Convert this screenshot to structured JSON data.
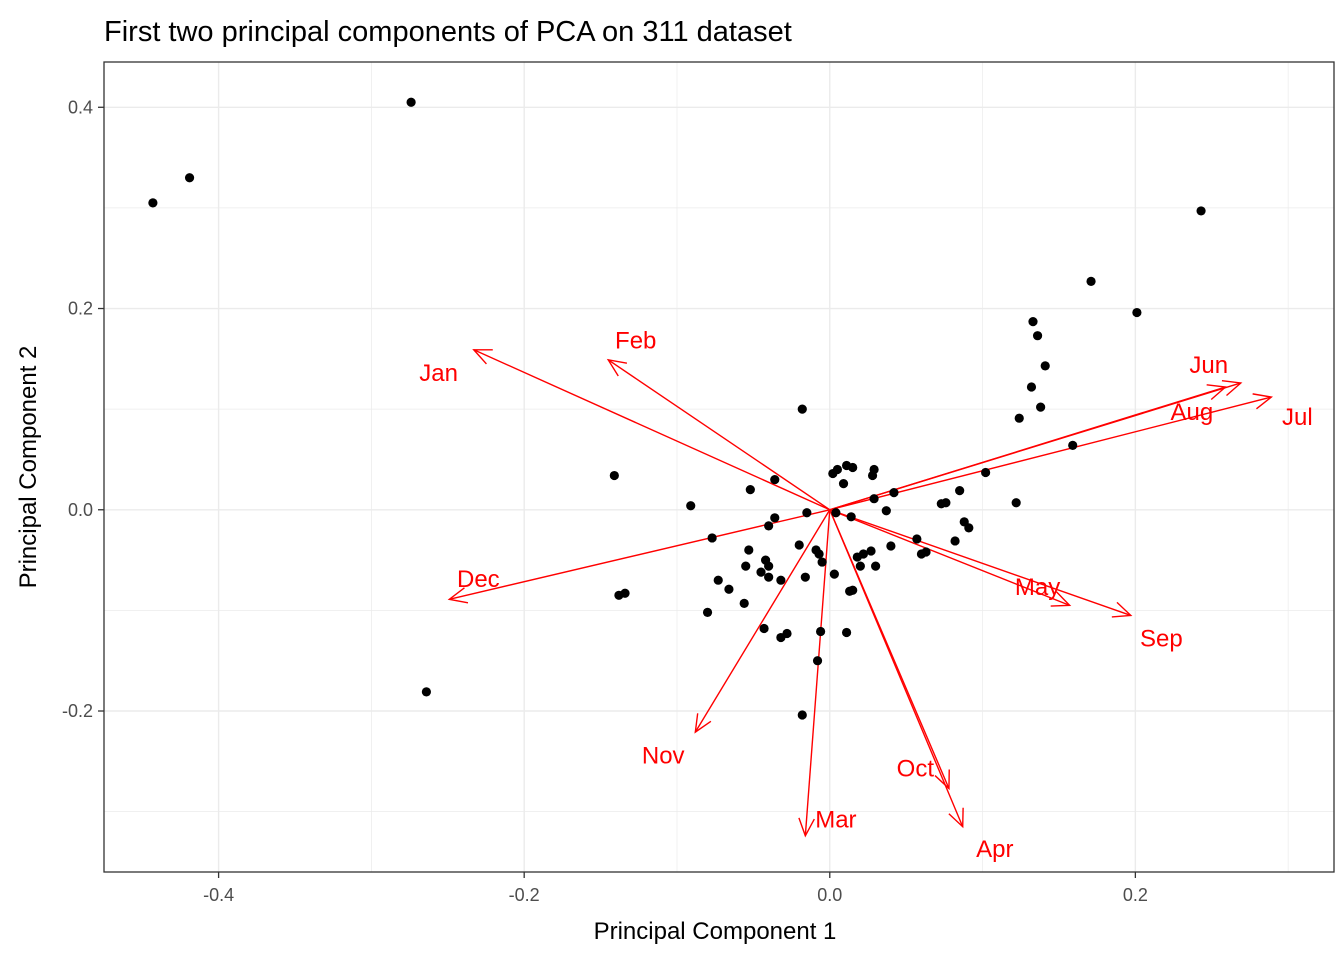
{
  "chart_data": {
    "type": "scatter",
    "title": "First two principal components of PCA on 311 dataset",
    "xlabel": "Principal Component 1",
    "ylabel": "Principal Component 2",
    "xlim": [
      -0.475,
      0.33
    ],
    "ylim": [
      -0.36,
      0.445
    ],
    "x_ticks": [
      -0.4,
      -0.2,
      0.0,
      0.2
    ],
    "x_tick_labels": [
      "-0.4",
      "-0.2",
      "0.0",
      "0.2"
    ],
    "y_ticks": [
      -0.2,
      0.0,
      0.2,
      0.4
    ],
    "y_tick_labels": [
      "-0.2",
      "0.0",
      "0.2",
      "0.4"
    ],
    "grid": true,
    "theme": "bw",
    "colors": {
      "points": "#000000",
      "vectors": "#ff0000",
      "grid": "#ebebeb",
      "panel_border": "#333333",
      "tick_text": "#4d4d4d"
    },
    "points": [
      [
        -0.443,
        0.305
      ],
      [
        -0.419,
        0.33
      ],
      [
        -0.274,
        0.405
      ],
      [
        -0.264,
        -0.181
      ],
      [
        0.243,
        0.297
      ],
      [
        0.171,
        0.227
      ],
      [
        0.201,
        0.196
      ],
      [
        0.133,
        0.187
      ],
      [
        0.136,
        0.173
      ],
      [
        0.141,
        0.143
      ],
      [
        0.132,
        0.122
      ],
      [
        0.138,
        0.102
      ],
      [
        0.124,
        0.091
      ],
      [
        0.159,
        0.064
      ],
      [
        0.122,
        0.007
      ],
      [
        0.102,
        0.037
      ],
      [
        -0.141,
        0.034
      ],
      [
        -0.138,
        -0.085
      ],
      [
        -0.134,
        -0.083
      ],
      [
        -0.018,
        0.1
      ],
      [
        -0.036,
        0.03
      ],
      [
        -0.091,
        0.004
      ],
      [
        -0.052,
        0.02
      ],
      [
        -0.077,
        -0.028
      ],
      [
        -0.036,
        -0.008
      ],
      [
        -0.04,
        -0.016
      ],
      [
        -0.053,
        -0.04
      ],
      [
        -0.055,
        -0.056
      ],
      [
        -0.042,
        -0.05
      ],
      [
        -0.045,
        -0.062
      ],
      [
        -0.04,
        -0.056
      ],
      [
        -0.04,
        -0.067
      ],
      [
        -0.032,
        -0.07
      ],
      [
        -0.073,
        -0.07
      ],
      [
        -0.066,
        -0.079
      ],
      [
        -0.056,
        -0.093
      ],
      [
        -0.08,
        -0.102
      ],
      [
        -0.043,
        -0.118
      ],
      [
        -0.032,
        -0.127
      ],
      [
        -0.028,
        -0.123
      ],
      [
        -0.02,
        -0.035
      ],
      [
        -0.015,
        -0.003
      ],
      [
        -0.009,
        -0.04
      ],
      [
        -0.007,
        -0.044
      ],
      [
        -0.005,
        -0.052
      ],
      [
        -0.016,
        -0.067
      ],
      [
        -0.006,
        -0.121
      ],
      [
        -0.008,
        -0.15
      ],
      [
        -0.018,
        -0.204
      ],
      [
        0.002,
        0.036
      ],
      [
        0.005,
        0.04
      ],
      [
        0.011,
        0.044
      ],
      [
        0.015,
        0.042
      ],
      [
        0.028,
        0.034
      ],
      [
        0.029,
        0.04
      ],
      [
        0.009,
        0.026
      ],
      [
        0.004,
        -0.003
      ],
      [
        0.014,
        -0.007
      ],
      [
        0.029,
        0.011
      ],
      [
        0.042,
        0.017
      ],
      [
        0.037,
        -0.001
      ],
      [
        0.003,
        -0.064
      ],
      [
        0.015,
        -0.08
      ],
      [
        0.013,
        -0.081
      ],
      [
        0.011,
        -0.122
      ],
      [
        0.02,
        -0.056
      ],
      [
        0.018,
        -0.047
      ],
      [
        0.022,
        -0.044
      ],
      [
        0.027,
        -0.041
      ],
      [
        0.03,
        -0.056
      ],
      [
        0.04,
        -0.036
      ],
      [
        0.057,
        -0.029
      ],
      [
        0.06,
        -0.044
      ],
      [
        0.063,
        -0.042
      ],
      [
        0.073,
        0.006
      ],
      [
        0.076,
        0.007
      ],
      [
        0.085,
        0.019
      ],
      [
        0.088,
        -0.012
      ],
      [
        0.091,
        -0.018
      ],
      [
        0.082,
        -0.031
      ]
    ],
    "vectors": [
      {
        "name": "Jan",
        "x": -0.233,
        "y": 0.159,
        "label_x": -0.256,
        "label_y": 0.136
      },
      {
        "name": "Feb",
        "x": -0.145,
        "y": 0.149,
        "label_x": -0.127,
        "label_y": 0.168
      },
      {
        "name": "Dec",
        "x": -0.249,
        "y": -0.089,
        "label_x": -0.23,
        "label_y": -0.069
      },
      {
        "name": "Nov",
        "x": -0.088,
        "y": -0.221,
        "label_x": -0.109,
        "label_y": -0.244
      },
      {
        "name": "Mar",
        "x": -0.016,
        "y": -0.324,
        "label_x": 0.004,
        "label_y": -0.308
      },
      {
        "name": "Apr",
        "x": 0.087,
        "y": -0.315,
        "label_x": 0.108,
        "label_y": -0.337
      },
      {
        "name": "Oct",
        "x": 0.078,
        "y": -0.277,
        "label_x": 0.056,
        "label_y": -0.257
      },
      {
        "name": "May",
        "x": 0.157,
        "y": -0.095,
        "label_x": 0.136,
        "label_y": -0.077
      },
      {
        "name": "Sep",
        "x": 0.197,
        "y": -0.105,
        "label_x": 0.217,
        "label_y": -0.128
      },
      {
        "name": "Aug",
        "x": 0.259,
        "y": 0.122,
        "label_x": 0.237,
        "label_y": 0.097
      },
      {
        "name": "Jun",
        "x": 0.269,
        "y": 0.126,
        "label_x": 0.248,
        "label_y": 0.144
      },
      {
        "name": "Jul",
        "x": 0.289,
        "y": 0.112,
        "label_x": 0.306,
        "label_y": 0.092
      }
    ]
  }
}
